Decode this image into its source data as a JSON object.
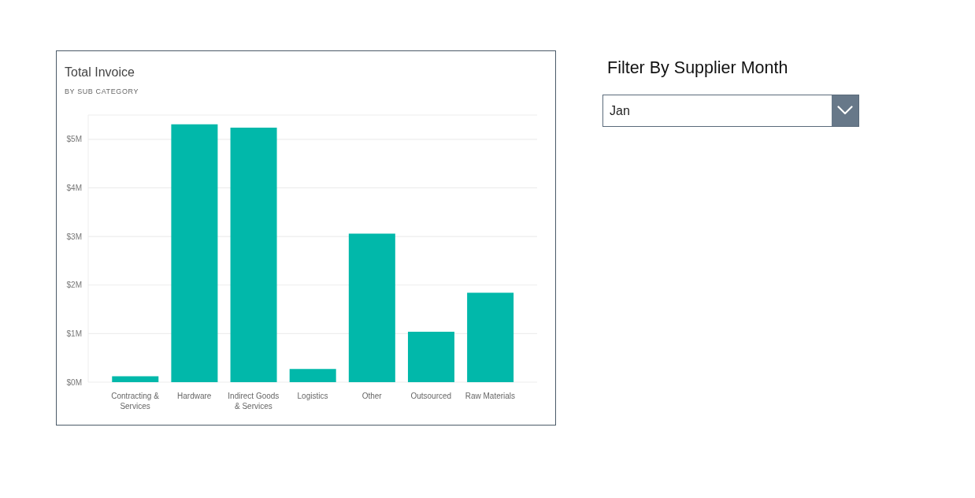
{
  "chart_data": {
    "type": "bar",
    "title": "Total Invoice",
    "subtitle": "BY SUB CATEGORY",
    "categories": [
      "Contracting & Services",
      "Hardware",
      "Indirect Goods & Services",
      "Logistics",
      "Other",
      "Outsourced",
      "Raw Materials"
    ],
    "values": [
      0.12,
      5.31,
      5.24,
      0.27,
      3.06,
      1.04,
      1.84
    ],
    "color": "#01b8aa",
    "ylim": [
      0,
      5.5
    ],
    "yticks": [
      {
        "value": 0,
        "label": "$0M"
      },
      {
        "value": 1,
        "label": "$1M"
      },
      {
        "value": 2,
        "label": "$2M"
      },
      {
        "value": 3,
        "label": "$3M"
      },
      {
        "value": 4,
        "label": "$4M"
      },
      {
        "value": 5,
        "label": "$5M"
      }
    ],
    "grid": "y",
    "annotations": [
      "Filter By Supplier Month",
      "Jan"
    ]
  }
}
